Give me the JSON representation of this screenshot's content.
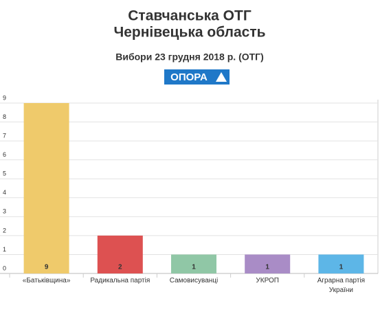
{
  "chart_data": {
    "type": "bar",
    "title": "Ставчанська ОТГ",
    "title_line2": "Чернівецька область",
    "subtitle": "Вибори 23 грудня 2018 р. (ОТГ)",
    "logo": "ОПОРА",
    "categories": [
      "«Батьківщина»",
      "Радикальна партія",
      "Самовисуванці",
      "УКРОП",
      "Аграрна партія України"
    ],
    "values": [
      9,
      2,
      1,
      1,
      1
    ],
    "colors": [
      "#efca6b",
      "#dd5151",
      "#90c7a6",
      "#a98cc6",
      "#5db6e7"
    ],
    "ylim": [
      0,
      9
    ],
    "yticks": [
      0,
      1,
      2,
      3,
      4,
      5,
      6,
      7,
      8,
      9
    ],
    "grid": true
  }
}
